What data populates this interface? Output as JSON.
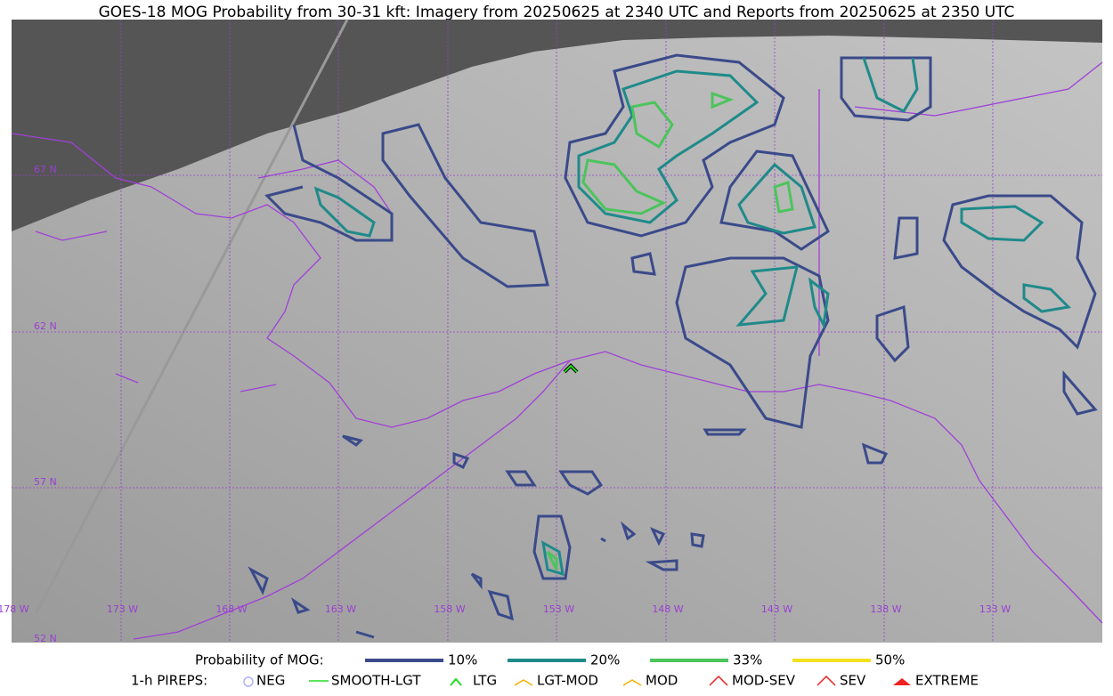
{
  "title": "GOES-18 MOG Probability from 30-31 kft: Imagery from 20250625 at 2340 UTC and Reports from 20250625 at 2350 UTC",
  "map": {
    "latitude_labels": [
      "67 N",
      "62 N",
      "57 N",
      "52 N"
    ],
    "longitude_labels": [
      "178 W",
      "173 W",
      "168 W",
      "163 W",
      "158 W",
      "153 W",
      "148 W",
      "143 W",
      "138 W",
      "133 W"
    ]
  },
  "legend": {
    "mog_title": "Probability of MOG:",
    "mog_levels": [
      {
        "label": "10%",
        "color": "#3a4a8a"
      },
      {
        "label": "20%",
        "color": "#1f8a8a"
      },
      {
        "label": "33%",
        "color": "#4cc45c"
      },
      {
        "label": "50%",
        "color": "#f5e020"
      }
    ],
    "pirep_title": "1-h PIREPS:",
    "pireps": [
      {
        "label": "NEG",
        "color": "#b0b0ff"
      },
      {
        "label": "SMOOTH-LGT",
        "color": "#22dd22"
      },
      {
        "label": "LTG",
        "color": "#22dd22"
      },
      {
        "label": "LGT-MOD",
        "color": "#f5b000"
      },
      {
        "label": "MOD",
        "color": "#f5b000"
      },
      {
        "label": "MOD-SEV",
        "color": "#ee2222"
      },
      {
        "label": "SEV",
        "color": "#ee2222"
      },
      {
        "label": "EXTREME",
        "color": "#ee2222"
      }
    ]
  }
}
